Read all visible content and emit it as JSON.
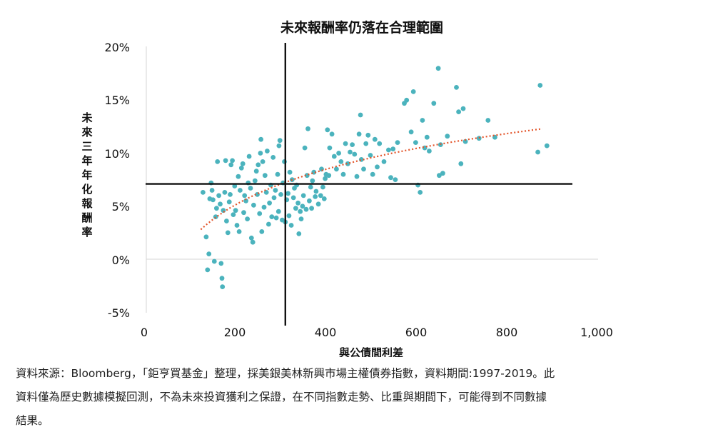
{
  "chart_data": {
    "type": "scatter",
    "title": "未來報酬率仍落在合理範圍",
    "xlabel": "與公債間利差",
    "ylabel": "未來三年年化報酬率",
    "xlim": [
      0,
      1000
    ],
    "ylim": [
      -5,
      20
    ],
    "x_ticks": [
      "0",
      "200",
      "400",
      "600",
      "800",
      "1,000"
    ],
    "y_ticks": [
      "20%",
      "15%",
      "10%",
      "5%",
      "0%",
      "-5%"
    ],
    "point_color": "#4bb3bd",
    "trend_color": "#e3552b",
    "crosshair": {
      "x": 312,
      "y": 7.1
    },
    "trendline": {
      "kind": "logarithmic",
      "x": [
        125,
        880
      ],
      "y": [
        2.8,
        12.3
      ]
    },
    "points": [
      [
        130,
        6.3
      ],
      [
        137,
        2.1
      ],
      [
        140,
        -1.0
      ],
      [
        143,
        0.5
      ],
      [
        145,
        5.7
      ],
      [
        148,
        7.2
      ],
      [
        150,
        6.5
      ],
      [
        152,
        5.6
      ],
      [
        155,
        -0.2
      ],
      [
        158,
        4.0
      ],
      [
        160,
        4.8
      ],
      [
        162,
        9.2
      ],
      [
        165,
        6.0
      ],
      [
        168,
        5.2
      ],
      [
        170,
        -0.4
      ],
      [
        172,
        -1.8
      ],
      [
        173,
        -2.6
      ],
      [
        175,
        4.6
      ],
      [
        178,
        6.3
      ],
      [
        180,
        9.3
      ],
      [
        182,
        3.6
      ],
      [
        185,
        2.5
      ],
      [
        188,
        5.4
      ],
      [
        190,
        6.1
      ],
      [
        192,
        8.9
      ],
      [
        195,
        9.3
      ],
      [
        197,
        4.2
      ],
      [
        200,
        6.9
      ],
      [
        202,
        4.6
      ],
      [
        205,
        3.2
      ],
      [
        208,
        7.8
      ],
      [
        210,
        2.6
      ],
      [
        212,
        6.5
      ],
      [
        215,
        8.6
      ],
      [
        218,
        9.0
      ],
      [
        220,
        4.4
      ],
      [
        222,
        6.0
      ],
      [
        225,
        5.5
      ],
      [
        228,
        3.8
      ],
      [
        230,
        7.2
      ],
      [
        232,
        9.7
      ],
      [
        235,
        6.7
      ],
      [
        237,
        2.0
      ],
      [
        240,
        1.6
      ],
      [
        242,
        5.1
      ],
      [
        245,
        7.4
      ],
      [
        248,
        8.3
      ],
      [
        250,
        6.1
      ],
      [
        252,
        8.9
      ],
      [
        255,
        4.3
      ],
      [
        257,
        10.0
      ],
      [
        258,
        11.3
      ],
      [
        260,
        2.6
      ],
      [
        262,
        9.2
      ],
      [
        265,
        4.9
      ],
      [
        267,
        7.9
      ],
      [
        270,
        6.3
      ],
      [
        272,
        10.2
      ],
      [
        275,
        3.3
      ],
      [
        277,
        5.3
      ],
      [
        280,
        7.0
      ],
      [
        282,
        4.0
      ],
      [
        285,
        9.6
      ],
      [
        287,
        5.8
      ],
      [
        290,
        6.5
      ],
      [
        292,
        3.9
      ],
      [
        295,
        8.0
      ],
      [
        297,
        4.5
      ],
      [
        298,
        10.7
      ],
      [
        300,
        11.2
      ],
      [
        302,
        6.1
      ],
      [
        305,
        3.7
      ],
      [
        307,
        7.2
      ],
      [
        310,
        9.2
      ],
      [
        312,
        3.5
      ],
      [
        315,
        5.6
      ],
      [
        318,
        6.2
      ],
      [
        320,
        4.1
      ],
      [
        322,
        8.2
      ],
      [
        325,
        3.2
      ],
      [
        327,
        7.5
      ],
      [
        330,
        5.8
      ],
      [
        332,
        6.7
      ],
      [
        335,
        4.8
      ],
      [
        337,
        7.0
      ],
      [
        340,
        5.3
      ],
      [
        342,
        2.4
      ],
      [
        345,
        4.5
      ],
      [
        347,
        3.8
      ],
      [
        350,
        5.0
      ],
      [
        352,
        6.0
      ],
      [
        355,
        10.5
      ],
      [
        358,
        4.7
      ],
      [
        360,
        7.9
      ],
      [
        362,
        12.3
      ],
      [
        365,
        5.5
      ],
      [
        368,
        6.8
      ],
      [
        370,
        4.8
      ],
      [
        372,
        7.4
      ],
      [
        375,
        8.2
      ],
      [
        378,
        5.9
      ],
      [
        380,
        6.4
      ],
      [
        385,
        5.2
      ],
      [
        390,
        6.0
      ],
      [
        392,
        8.5
      ],
      [
        395,
        6.8
      ],
      [
        398,
        5.7
      ],
      [
        400,
        7.6
      ],
      [
        402,
        8.0
      ],
      [
        405,
        12.2
      ],
      [
        408,
        7.9
      ],
      [
        410,
        10.5
      ],
      [
        415,
        11.8
      ],
      [
        420,
        9.7
      ],
      [
        425,
        8.5
      ],
      [
        430,
        10.0
      ],
      [
        435,
        9.2
      ],
      [
        440,
        8.0
      ],
      [
        445,
        10.9
      ],
      [
        450,
        9.0
      ],
      [
        455,
        10.1
      ],
      [
        460,
        10.8
      ],
      [
        465,
        9.9
      ],
      [
        470,
        7.8
      ],
      [
        475,
        11.8
      ],
      [
        478,
        13.6
      ],
      [
        480,
        9.4
      ],
      [
        485,
        8.5
      ],
      [
        490,
        10.9
      ],
      [
        495,
        11.7
      ],
      [
        500,
        9.8
      ],
      [
        505,
        8.0
      ],
      [
        510,
        11.3
      ],
      [
        515,
        8.7
      ],
      [
        520,
        10.9
      ],
      [
        530,
        9.2
      ],
      [
        540,
        10.3
      ],
      [
        545,
        7.7
      ],
      [
        550,
        10.4
      ],
      [
        555,
        7.5
      ],
      [
        560,
        11.0
      ],
      [
        575,
        14.7
      ],
      [
        580,
        15.0
      ],
      [
        590,
        12.0
      ],
      [
        595,
        15.8
      ],
      [
        600,
        11.0
      ],
      [
        605,
        7.0
      ],
      [
        610,
        6.3
      ],
      [
        615,
        13.1
      ],
      [
        620,
        10.5
      ],
      [
        625,
        11.5
      ],
      [
        630,
        10.2
      ],
      [
        640,
        14.7
      ],
      [
        650,
        18.0
      ],
      [
        652,
        7.9
      ],
      [
        655,
        10.8
      ],
      [
        660,
        8.1
      ],
      [
        670,
        11.6
      ],
      [
        690,
        16.2
      ],
      [
        695,
        13.9
      ],
      [
        700,
        9.0
      ],
      [
        705,
        14.2
      ],
      [
        710,
        11.1
      ],
      [
        740,
        11.4
      ],
      [
        760,
        13.1
      ],
      [
        775,
        11.5
      ],
      [
        870,
        10.1
      ],
      [
        875,
        16.4
      ],
      [
        890,
        10.7
      ]
    ]
  }
}
